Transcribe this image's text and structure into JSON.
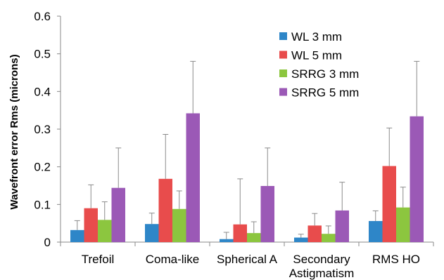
{
  "chart_data": {
    "type": "bar",
    "ylabel": "Wavefront error Rms (microns)",
    "ylim": [
      0,
      0.6
    ],
    "yticks": [
      "0",
      "0.1",
      "0.2",
      "0.3",
      "0.4",
      "0.5",
      "0.6"
    ],
    "ytick_values": [
      0,
      0.1,
      0.2,
      0.3,
      0.4,
      0.5,
      0.6
    ],
    "categories": [
      [
        "Trefoil"
      ],
      [
        "Coma-like"
      ],
      [
        "Spherical A"
      ],
      [
        "Secondary",
        "Astigmatism"
      ],
      [
        "RMS HO"
      ]
    ],
    "legend_position": "top-right",
    "grid": false,
    "series": [
      {
        "name": "WL 3 mm",
        "color": "#2e86c8",
        "values": [
          0.032,
          0.048,
          0.008,
          0.012,
          0.056
        ],
        "errors": [
          0.025,
          0.029,
          0.018,
          0.009,
          0.027
        ]
      },
      {
        "name": "WL 5 mm",
        "color": "#e84c4c",
        "values": [
          0.09,
          0.168,
          0.047,
          0.044,
          0.202
        ],
        "errors": [
          0.062,
          0.118,
          0.121,
          0.032,
          0.101
        ]
      },
      {
        "name": "SRRG 3 mm",
        "color": "#8cc63f",
        "values": [
          0.059,
          0.088,
          0.024,
          0.022,
          0.092
        ],
        "errors": [
          0.048,
          0.048,
          0.03,
          0.021,
          0.054
        ]
      },
      {
        "name": "SRRG 5 mm",
        "color": "#9b59b6",
        "values": [
          0.144,
          0.342,
          0.149,
          0.084,
          0.334
        ],
        "errors": [
          0.106,
          0.138,
          0.101,
          0.075,
          0.146
        ]
      }
    ]
  }
}
